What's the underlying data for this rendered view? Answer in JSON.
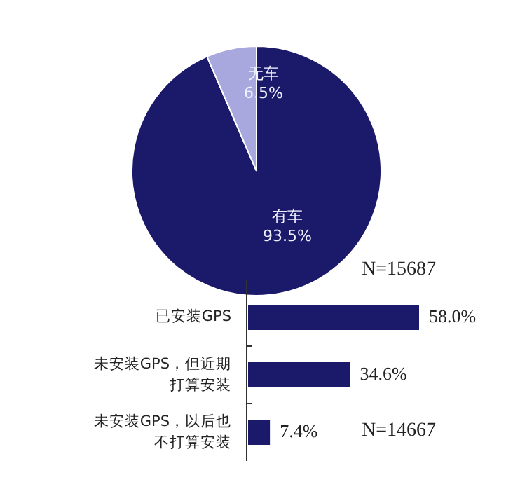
{
  "chart_data": [
    {
      "type": "pie",
      "categories": [
        "有车",
        "无车"
      ],
      "values": [
        93.5,
        6.5
      ],
      "colors": [
        "#1b1a6a",
        "#a9a8de"
      ],
      "value_labels": [
        "93.5%",
        "6.5%"
      ],
      "annotations": [
        "N=15687"
      ]
    },
    {
      "type": "bar",
      "orientation": "horizontal",
      "categories": [
        "已安装GPS",
        "未安装GPS，但近期打算安装",
        "未安装GPS，以后也不打算安装"
      ],
      "values": [
        58.0,
        34.6,
        7.4
      ],
      "color": "#1b1a6a",
      "value_labels": [
        "58.0%",
        "34.6%",
        "7.4%"
      ],
      "annotations": [
        "N=14667"
      ]
    }
  ]
}
